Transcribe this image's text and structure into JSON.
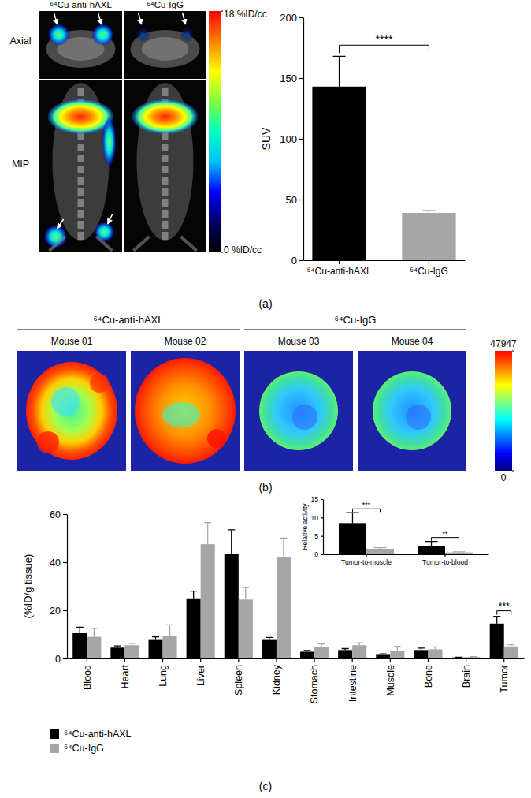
{
  "chart_data": [
    {
      "type": "bar",
      "categories": [
        "⁶⁴Cu-anti-hAXL",
        "⁶⁴Cu-IgG"
      ],
      "values": [
        143,
        39
      ],
      "errors": [
        25,
        2
      ],
      "colors": [
        "#000000",
        "#a6a6a6"
      ],
      "y_label": "SUV",
      "ylim": [
        0,
        200
      ],
      "yticks": [
        0,
        50,
        100,
        150,
        200
      ],
      "significance": [
        {
          "label": "****",
          "between": [
            "⁶⁴Cu-anti-hAXL",
            "⁶⁴Cu-IgG"
          ]
        }
      ]
    },
    {
      "type": "bar",
      "categories": [
        "Blood",
        "Heart",
        "Lung",
        "Liver",
        "Spleen",
        "Kidney",
        "Stomach",
        "Intestine",
        "Muscle",
        "Bone",
        "Brain",
        "Tumor"
      ],
      "series": [
        {
          "name": "⁶⁴Cu-anti-hAXL",
          "color": "#000000",
          "values": [
            10.5,
            4.5,
            8,
            25,
            43.5,
            8,
            2.8,
            3.5,
            1.5,
            3.5,
            0.4,
            14.5
          ],
          "errors": [
            2.5,
            0.7,
            1,
            3,
            10,
            0.7,
            0.5,
            0.6,
            0.4,
            0.8,
            0.1,
            3
          ]
        },
        {
          "name": "⁶⁴Cu-IgG",
          "color": "#a6a6a6",
          "values": [
            9,
            5.5,
            9.5,
            47.5,
            24.5,
            42,
            4.8,
            5.5,
            3,
            3.8,
            0.6,
            5
          ],
          "errors": [
            3.5,
            0.8,
            4.5,
            9,
            5,
            8,
            1.2,
            1,
            2,
            1,
            0.2,
            0.7
          ]
        }
      ],
      "y_label": "(%ID/g tissue)",
      "ylim": [
        0,
        60
      ],
      "yticks": [
        0,
        20,
        40,
        60
      ],
      "legend": "bottom",
      "significance": [
        {
          "label": "***",
          "category": "Tumor"
        }
      ]
    },
    {
      "type": "bar",
      "categories": [
        "Tumor-to-muscle",
        "Tumor-to-blood"
      ],
      "series": [
        {
          "color": "#000000",
          "values": [
            8.5,
            2.3
          ],
          "errors": [
            2.8,
            1.2
          ]
        },
        {
          "color": "#a6a6a6",
          "values": [
            1.5,
            0.5
          ],
          "errors": [
            0.3,
            0.15
          ]
        }
      ],
      "y_label": "Relative activity",
      "ylim": [
        0,
        15
      ],
      "yticks": [
        0,
        5,
        10,
        15
      ],
      "significance": [
        {
          "label": "***",
          "category": "Tumor-to-muscle"
        },
        {
          "label": "**",
          "category": "Tumor-to-blood"
        }
      ]
    }
  ],
  "figure": {
    "panel_labels": [
      "(a)",
      "(b)",
      "(c)"
    ],
    "pet": {
      "columns": [
        "⁶⁴Cu-anti-hAXL",
        "⁶⁴Cu-IgG"
      ],
      "rows": [
        "Axial",
        "MIP"
      ],
      "colorbar": {
        "range": [
          0,
          18
        ],
        "ticks": [
          {
            "value": 18,
            "label": "18 %ID/cc"
          },
          {
            "value": 0,
            "label": "0 %ID/cc"
          }
        ]
      }
    },
    "optical": {
      "groups": [
        "⁶⁴Cu-anti-hAXL",
        "⁶⁴Cu-IgG"
      ],
      "mice": [
        "Mouse 01",
        "Mouse 02",
        "Mouse 03",
        "Mouse 04"
      ],
      "colorbar": {
        "range": [
          0,
          47947
        ],
        "ticks": [
          47947,
          0
        ]
      }
    }
  }
}
